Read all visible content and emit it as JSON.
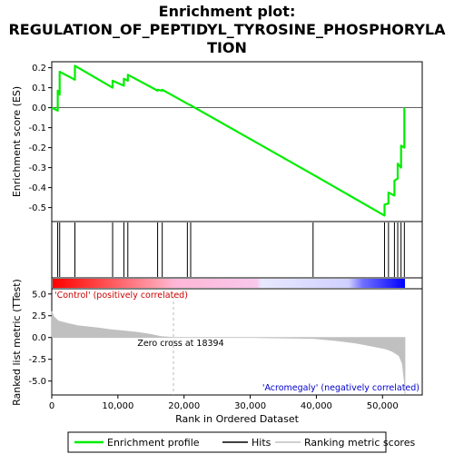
{
  "chart_data": {
    "type": "line",
    "title_lines": [
      "Enrichment plot:",
      "REGULATION_OF_PEPTIDYL_TYROSINE_PHOSPHORYLA",
      "TION"
    ],
    "colors": {
      "profile": "#00ee00",
      "hit": "#000000",
      "metric_fill": "#c0c0c0",
      "positive": "#ff0000",
      "negative": "#0000ff",
      "neg_label": "#0000cc",
      "pos_label": "#cc0000"
    },
    "es_panel": {
      "ylabel": "Enrichment score (ES)",
      "ylim": [
        -0.57,
        0.23
      ],
      "yticks": [
        0.2,
        0.1,
        0.0,
        -0.1,
        -0.2,
        -0.3,
        -0.4,
        -0.5
      ],
      "ytick_labels": [
        "0.2",
        "0.1",
        "0.0",
        "-0.1",
        "-0.2",
        "-0.3",
        "-0.4",
        "-0.5"
      ],
      "grid": false
    },
    "enrichment_profile": {
      "name": "Enrichment profile",
      "x": [
        0,
        900,
        900,
        1200,
        1200,
        3500,
        3500,
        9200,
        9200,
        10900,
        10900,
        11500,
        11500,
        16000,
        16000,
        16700,
        16700,
        20500,
        20500,
        21000,
        21000,
        39500,
        39500,
        50300,
        50300,
        50900,
        50900,
        51800,
        51800,
        52300,
        52300,
        52800,
        52800,
        53300,
        53300
      ],
      "y": [
        0.0,
        -0.015,
        0.085,
        0.065,
        0.18,
        0.14,
        0.21,
        0.1,
        0.135,
        0.11,
        0.145,
        0.135,
        0.165,
        0.085,
        0.09,
        0.085,
        0.09,
        0.02,
        0.02,
        0.012,
        0.012,
        -0.335,
        -0.335,
        -0.54,
        -0.485,
        -0.48,
        -0.425,
        -0.44,
        -0.365,
        -0.355,
        -0.28,
        -0.3,
        -0.19,
        -0.2,
        0.0
      ]
    },
    "hits": {
      "name": "Hits",
      "x": [
        900,
        1200,
        3500,
        9200,
        10900,
        11500,
        16000,
        16700,
        20500,
        21000,
        39500,
        50300,
        50900,
        51800,
        52300,
        52800,
        53300
      ]
    },
    "ranking_metric": {
      "name": "Ranking metric scores",
      "ylabel": "Ranked list metric (TTest)",
      "ylim": [
        -6.6,
        5.6
      ],
      "yticks": [
        5.0,
        2.5,
        0.0,
        -2.5,
        -5.0
      ],
      "ytick_labels": [
        "5.0",
        "2.5",
        "0.0",
        "-2.5",
        "-5.0"
      ],
      "x": [
        0,
        300,
        1000,
        2500,
        4000,
        7000,
        9000,
        11000,
        13000,
        15000,
        16500,
        18394,
        22000,
        30000,
        39500,
        43000,
        46000,
        48500,
        50500,
        51500,
        52500,
        53000,
        53300,
        53394
      ],
      "values": [
        3.0,
        2.4,
        1.9,
        1.6,
        1.35,
        1.1,
        0.9,
        0.75,
        0.6,
        0.35,
        0.12,
        0.0,
        0.0,
        0.0,
        -0.1,
        -0.35,
        -0.65,
        -1.0,
        -1.3,
        -1.6,
        -2.1,
        -3.0,
        -5.0,
        -6.5
      ]
    },
    "zero_cross_label": "Zero cross at 18394",
    "pos_label": "'Control' (positively correlated)",
    "neg_label": "'Acromegaly' (negatively correlated)",
    "xlabel": "Rank in Ordered Dataset",
    "xlim": [
      0,
      56000
    ],
    "xticks": [
      0,
      10000,
      20000,
      30000,
      40000,
      50000
    ],
    "xtick_labels": [
      "0",
      "10,000",
      "20,000",
      "30,000",
      "40,000",
      "50,000"
    ],
    "total_genes": 53394,
    "zero_cross": 18394,
    "legend": {
      "items": [
        "Enrichment profile",
        "Hits",
        "Ranking metric scores"
      ],
      "placement": "bottom"
    }
  }
}
